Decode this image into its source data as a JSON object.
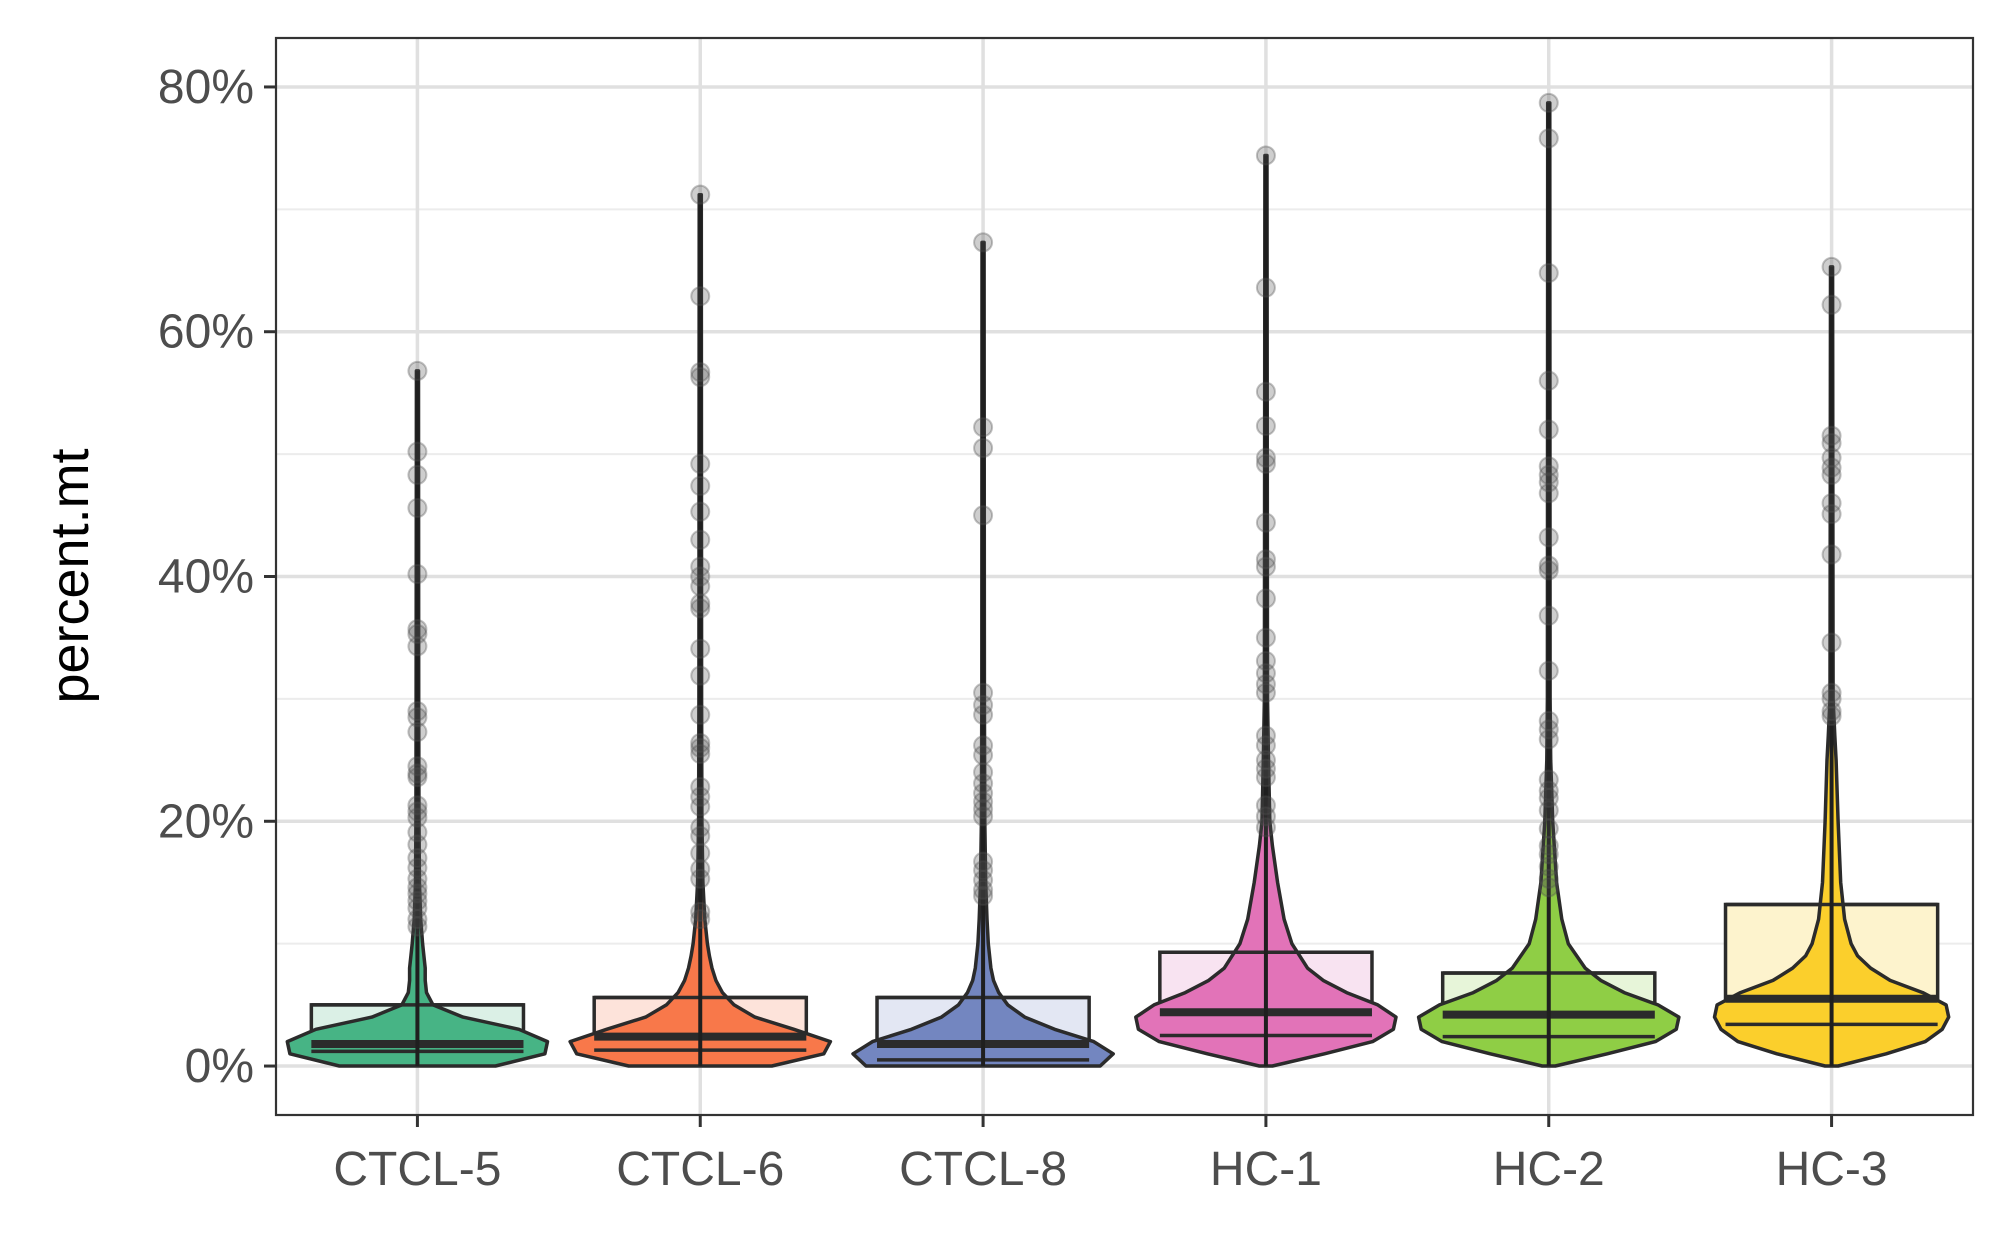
{
  "chart_data": {
    "type": "violin",
    "title": "",
    "xlabel": "",
    "ylabel": "percent.mt",
    "ylim": [
      -4,
      84
    ],
    "grid": true,
    "y_ticks": [
      0,
      20,
      40,
      60,
      80
    ],
    "y_tick_labels": [
      "0%",
      "20%",
      "40%",
      "60%",
      "80%"
    ],
    "y_minor_ticks": [
      10,
      30,
      50,
      70
    ],
    "categories": [
      "CTCL-5",
      "CTCL-6",
      "CTCL-8",
      "HC-1",
      "HC-2",
      "HC-3"
    ],
    "colors": [
      "#47b485",
      "#f8784a",
      "#7386c0",
      "#e273b8",
      "#8fce45",
      "#fbcf2c"
    ],
    "box_colors": [
      "#dbf0e6",
      "#fde3da",
      "#e3e7f3",
      "#f8e3f1",
      "#e7f5d9",
      "#fdf3cd"
    ],
    "series": [
      {
        "name": "CTCL-5",
        "min": 0,
        "max": 56.8,
        "box": {
          "q1": 1.2,
          "median": 1.8,
          "q3": 5.0
        },
        "violin_profile": [
          [
            0,
            0.6
          ],
          [
            1,
            0.98
          ],
          [
            2,
            1.0
          ],
          [
            3,
            0.78
          ],
          [
            4,
            0.35
          ],
          [
            5,
            0.12
          ],
          [
            6,
            0.07
          ],
          [
            7,
            0.06
          ],
          [
            8,
            0.06
          ],
          [
            9,
            0.05
          ],
          [
            10,
            0.04
          ],
          [
            12,
            0.025
          ],
          [
            15,
            0.015
          ],
          [
            20,
            0.012
          ],
          [
            30,
            0.01
          ],
          [
            56.8,
            0.008
          ]
        ],
        "outliers": [
          56.8,
          50.2,
          48.3,
          45.6,
          40.2,
          35.7,
          35.3,
          34.3,
          29.0,
          28.5,
          27.3,
          24.5,
          23.9,
          23.6,
          21.3,
          20.8,
          20.3,
          19.1,
          18.1,
          17.0,
          16.2,
          15.3,
          14.6,
          14.1,
          13.5,
          12.9,
          12.0,
          11.4
        ]
      },
      {
        "name": "CTCL-6",
        "min": 0,
        "max": 71.2,
        "box": {
          "q1": 1.3,
          "median": 2.4,
          "q3": 5.6
        },
        "violin_profile": [
          [
            0,
            0.55
          ],
          [
            1,
            0.95
          ],
          [
            2,
            1.0
          ],
          [
            3,
            0.72
          ],
          [
            4,
            0.42
          ],
          [
            5,
            0.26
          ],
          [
            6,
            0.17
          ],
          [
            7,
            0.12
          ],
          [
            8,
            0.09
          ],
          [
            9,
            0.07
          ],
          [
            10,
            0.055
          ],
          [
            12,
            0.035
          ],
          [
            15,
            0.02
          ],
          [
            20,
            0.013
          ],
          [
            30,
            0.01
          ],
          [
            71.2,
            0.008
          ]
        ],
        "outliers": [
          71.2,
          62.9,
          56.7,
          56.3,
          49.2,
          47.4,
          45.3,
          43.0,
          40.8,
          40.0,
          39.2,
          37.8,
          37.4,
          34.1,
          31.9,
          28.7,
          26.4,
          26.0,
          25.5,
          22.8,
          22.0,
          21.2,
          19.5,
          18.8,
          17.4,
          16.1,
          15.3,
          12.6,
          12.0
        ]
      },
      {
        "name": "CTCL-8",
        "min": 0,
        "max": 67.3,
        "box": {
          "q1": 0.5,
          "median": 1.8,
          "q3": 5.6
        },
        "violin_profile": [
          [
            0,
            0.9
          ],
          [
            1,
            1.0
          ],
          [
            2,
            0.85
          ],
          [
            3,
            0.55
          ],
          [
            4,
            0.32
          ],
          [
            5,
            0.19
          ],
          [
            6,
            0.12
          ],
          [
            7,
            0.08
          ],
          [
            8,
            0.06
          ],
          [
            10,
            0.04
          ],
          [
            12,
            0.03
          ],
          [
            15,
            0.02
          ],
          [
            20,
            0.013
          ],
          [
            30,
            0.01
          ],
          [
            67.3,
            0.008
          ]
        ],
        "outliers": [
          67.3,
          52.2,
          50.5,
          45.0,
          30.5,
          29.5,
          28.7,
          26.2,
          25.4,
          24.0,
          23.1,
          22.3,
          21.6,
          21.0,
          20.4,
          16.7,
          16.0,
          15.2,
          14.4,
          13.9
        ]
      },
      {
        "name": "HC-1",
        "min": 0,
        "max": 74.4,
        "box": {
          "q1": 2.5,
          "median": 4.4,
          "q3": 9.3
        },
        "violin_profile": [
          [
            0,
            0.05
          ],
          [
            1,
            0.45
          ],
          [
            2,
            0.82
          ],
          [
            3,
            0.98
          ],
          [
            4,
            1.0
          ],
          [
            5,
            0.86
          ],
          [
            6,
            0.62
          ],
          [
            7,
            0.44
          ],
          [
            8,
            0.32
          ],
          [
            10,
            0.2
          ],
          [
            12,
            0.14
          ],
          [
            15,
            0.09
          ],
          [
            18,
            0.05
          ],
          [
            20,
            0.03
          ],
          [
            25,
            0.02
          ],
          [
            30,
            0.012
          ],
          [
            74.4,
            0.008
          ]
        ],
        "outliers": [
          74.4,
          63.6,
          55.1,
          52.3,
          49.7,
          49.2,
          44.4,
          41.4,
          40.8,
          38.2,
          35.0,
          33.1,
          32.1,
          31.2,
          30.5,
          27.0,
          26.2,
          25.0,
          24.3,
          23.6,
          21.3,
          20.4,
          19.5
        ]
      },
      {
        "name": "HC-2",
        "min": 0,
        "max": 78.7,
        "box": {
          "q1": 2.4,
          "median": 4.2,
          "q3": 7.6
        },
        "violin_profile": [
          [
            0,
            0.05
          ],
          [
            1,
            0.45
          ],
          [
            2,
            0.82
          ],
          [
            3,
            0.98
          ],
          [
            4,
            1.0
          ],
          [
            5,
            0.84
          ],
          [
            6,
            0.58
          ],
          [
            7,
            0.4
          ],
          [
            8,
            0.28
          ],
          [
            10,
            0.15
          ],
          [
            12,
            0.1
          ],
          [
            15,
            0.06
          ],
          [
            20,
            0.03
          ],
          [
            25,
            0.015
          ],
          [
            30,
            0.01
          ],
          [
            78.7,
            0.008
          ]
        ],
        "outliers": [
          78.7,
          75.8,
          64.8,
          56.0,
          52.0,
          49.0,
          48.3,
          47.7,
          46.8,
          43.2,
          40.9,
          40.5,
          36.8,
          32.3,
          28.2,
          27.5,
          26.7,
          23.4,
          22.5,
          21.9,
          20.9,
          19.4,
          18.0,
          17.3,
          16.3,
          15.3,
          14.6
        ]
      },
      {
        "name": "HC-3",
        "min": 0,
        "max": 65.3,
        "box": {
          "q1": 3.4,
          "median": 5.5,
          "q3": 13.2
        },
        "violin_profile": [
          [
            0,
            0.05
          ],
          [
            1,
            0.42
          ],
          [
            2,
            0.72
          ],
          [
            3,
            0.85
          ],
          [
            4,
            0.9
          ],
          [
            5,
            0.88
          ],
          [
            6,
            0.7
          ],
          [
            7,
            0.45
          ],
          [
            8,
            0.3
          ],
          [
            9,
            0.2
          ],
          [
            10,
            0.15
          ],
          [
            12,
            0.1
          ],
          [
            15,
            0.07
          ],
          [
            20,
            0.05
          ],
          [
            25,
            0.035
          ],
          [
            27,
            0.025
          ],
          [
            30,
            0.012
          ],
          [
            65.3,
            0.008
          ]
        ],
        "outliers": [
          65.3,
          62.2,
          51.5,
          50.9,
          49.7,
          48.9,
          48.3,
          46.0,
          45.1,
          41.8,
          34.6,
          30.5,
          30.0,
          29.0,
          28.6
        ]
      }
    ]
  }
}
